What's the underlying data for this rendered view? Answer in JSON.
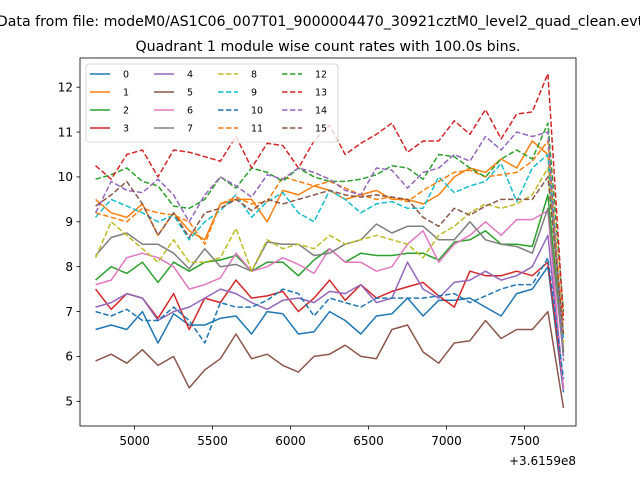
{
  "chart_data": {
    "type": "line",
    "suptitle": "Data from file: modeM0/AS1C06_007T01_9000004470_30921cztM0_level2_quad_clean.evt",
    "title": "Quadrant 1 module wise count rates with 100.0s bins.",
    "xlabel": "",
    "ylabel": "",
    "x_offset_label": "+3.6159e8",
    "x_offset": 361590000,
    "xlim": [
      4650,
      7830
    ],
    "ylim": [
      4.45,
      12.65
    ],
    "xticks": [
      5000,
      5500,
      6000,
      6500,
      7000,
      7500
    ],
    "yticks": [
      5,
      6,
      7,
      8,
      9,
      10,
      11,
      12
    ],
    "x": [
      4750,
      4850,
      4950,
      5050,
      5150,
      5250,
      5350,
      5450,
      5550,
      5650,
      5750,
      5850,
      5950,
      6050,
      6150,
      6250,
      6350,
      6450,
      6550,
      6650,
      6750,
      6850,
      6950,
      7050,
      7150,
      7250,
      7350,
      7450,
      7550,
      7650,
      7750
    ],
    "legend": {
      "location": "upper-left",
      "columns": 4
    },
    "series": [
      {
        "name": "0",
        "color": "#1f77b4",
        "style": "solid",
        "values": [
          6.6,
          6.7,
          6.6,
          7.0,
          6.3,
          6.95,
          6.7,
          6.7,
          6.85,
          6.9,
          6.5,
          7.0,
          6.95,
          6.5,
          6.55,
          7.0,
          6.8,
          6.5,
          6.9,
          6.95,
          7.3,
          6.9,
          7.25,
          7.25,
          7.3,
          7.1,
          6.9,
          7.4,
          7.5,
          8.0,
          5.2
        ]
      },
      {
        "name": "1",
        "color": "#ff7f0e",
        "style": "solid",
        "values": [
          9.5,
          9.2,
          9.1,
          9.4,
          8.7,
          9.2,
          8.8,
          8.6,
          9.4,
          9.5,
          9.5,
          9.0,
          9.7,
          9.6,
          9.8,
          9.7,
          9.5,
          9.6,
          9.7,
          9.5,
          9.5,
          9.4,
          9.6,
          10.0,
          10.2,
          10.1,
          10.4,
          10.2,
          10.8,
          10.5,
          6.1
        ]
      },
      {
        "name": "2",
        "color": "#2ca02c",
        "style": "solid",
        "values": [
          7.7,
          8.0,
          7.85,
          8.1,
          7.65,
          8.1,
          7.9,
          8.1,
          8.15,
          8.25,
          7.9,
          8.1,
          8.1,
          7.8,
          8.15,
          8.4,
          8.1,
          8.3,
          8.25,
          8.25,
          8.3,
          8.3,
          8.15,
          8.55,
          8.6,
          8.8,
          8.5,
          8.5,
          8.45,
          9.6,
          6.1
        ]
      },
      {
        "name": "3",
        "color": "#d62728",
        "style": "solid",
        "values": [
          7.5,
          7.05,
          7.4,
          7.3,
          6.85,
          7.4,
          6.6,
          7.3,
          7.2,
          7.7,
          7.3,
          7.35,
          7.45,
          7.0,
          7.3,
          7.7,
          7.25,
          7.6,
          7.3,
          7.45,
          7.55,
          7.65,
          7.35,
          7.1,
          7.9,
          7.8,
          7.8,
          7.9,
          7.8,
          8.1,
          5.3
        ]
      },
      {
        "name": "4",
        "color": "#9467bd",
        "style": "solid",
        "values": [
          7.1,
          7.2,
          7.4,
          7.3,
          6.8,
          7.0,
          7.1,
          7.3,
          7.5,
          7.4,
          7.2,
          7.05,
          7.25,
          7.3,
          7.2,
          7.45,
          7.4,
          7.6,
          7.2,
          7.3,
          8.1,
          7.5,
          7.3,
          7.65,
          7.7,
          7.9,
          7.7,
          7.8,
          8.0,
          8.7,
          5.3
        ]
      },
      {
        "name": "5",
        "color": "#8c564b",
        "style": "solid",
        "values": [
          5.9,
          6.05,
          5.85,
          6.15,
          5.8,
          6.0,
          5.3,
          5.7,
          5.95,
          6.5,
          5.95,
          6.05,
          5.8,
          5.65,
          6.0,
          6.05,
          6.25,
          6.0,
          5.95,
          6.6,
          6.7,
          6.1,
          5.85,
          6.3,
          6.35,
          6.8,
          6.4,
          6.6,
          6.6,
          7.0,
          4.85
        ]
      },
      {
        "name": "6",
        "color": "#e377c2",
        "style": "solid",
        "values": [
          7.6,
          7.7,
          8.2,
          8.3,
          8.2,
          8.0,
          7.5,
          7.6,
          7.75,
          8.3,
          7.9,
          8.0,
          8.2,
          8.05,
          7.85,
          8.4,
          8.1,
          8.1,
          7.9,
          8.0,
          8.5,
          8.8,
          8.1,
          8.5,
          8.7,
          9.0,
          8.7,
          9.05,
          9.05,
          9.25,
          5.25
        ]
      },
      {
        "name": "7",
        "color": "#7f7f7f",
        "style": "solid",
        "values": [
          8.25,
          8.65,
          8.75,
          8.5,
          8.5,
          8.3,
          7.95,
          8.4,
          8.0,
          8.05,
          7.9,
          8.55,
          8.5,
          8.5,
          8.25,
          8.3,
          8.5,
          8.6,
          8.95,
          8.75,
          8.9,
          8.9,
          8.6,
          8.6,
          9.0,
          8.6,
          8.5,
          8.45,
          8.3,
          9.3,
          6.0
        ]
      },
      {
        "name": "8",
        "color": "#bcbd22",
        "style": "dashed",
        "values": [
          8.2,
          9.0,
          8.7,
          8.4,
          8.1,
          8.6,
          8.1,
          8.1,
          8.2,
          8.85,
          7.9,
          8.6,
          8.4,
          8.5,
          8.4,
          8.7,
          8.5,
          8.6,
          8.7,
          8.6,
          8.5,
          8.2,
          8.7,
          8.9,
          9.2,
          9.4,
          9.3,
          9.4,
          9.6,
          10.2,
          6.3
        ]
      },
      {
        "name": "9",
        "color": "#17becf",
        "style": "dashed",
        "values": [
          9.1,
          9.5,
          9.35,
          9.2,
          9.0,
          9.15,
          8.6,
          9.0,
          9.25,
          9.6,
          9.1,
          9.45,
          9.65,
          9.2,
          9.0,
          9.7,
          9.5,
          9.2,
          9.4,
          9.45,
          9.3,
          9.3,
          10.0,
          9.65,
          9.8,
          9.9,
          10.3,
          9.45,
          10.2,
          10.5,
          6.4
        ]
      },
      {
        "name": "10",
        "color": "#1f77b4",
        "style": "dashed",
        "values": [
          7.0,
          6.9,
          7.05,
          6.8,
          6.8,
          7.1,
          6.8,
          6.3,
          7.2,
          7.1,
          7.1,
          7.25,
          7.5,
          7.4,
          6.9,
          7.3,
          7.2,
          7.1,
          7.3,
          7.3,
          7.3,
          7.3,
          7.35,
          7.4,
          7.2,
          7.35,
          7.5,
          7.6,
          7.6,
          8.2,
          5.5
        ]
      },
      {
        "name": "11",
        "color": "#ff7f0e",
        "style": "dashed",
        "values": [
          9.2,
          9.1,
          9.0,
          9.3,
          9.2,
          9.15,
          9.0,
          8.5,
          9.4,
          9.55,
          9.4,
          9.45,
          10.0,
          9.9,
          9.8,
          9.9,
          9.75,
          9.6,
          9.5,
          9.55,
          9.45,
          9.7,
          9.9,
          10.1,
          10.15,
          10.0,
          10.05,
          10.1,
          10.35,
          10.8,
          6.5
        ]
      },
      {
        "name": "12",
        "color": "#2ca02c",
        "style": "dashed",
        "values": [
          9.95,
          10.05,
          10.2,
          9.9,
          9.8,
          9.35,
          9.3,
          9.5,
          10.0,
          9.75,
          10.2,
          10.1,
          9.9,
          10.2,
          10.0,
          9.9,
          9.9,
          9.95,
          10.05,
          10.25,
          10.2,
          9.95,
          10.5,
          10.45,
          10.2,
          10.0,
          10.4,
          10.6,
          10.4,
          11.2,
          7.0
        ]
      },
      {
        "name": "13",
        "color": "#d62728",
        "style": "dashed",
        "values": [
          10.25,
          9.95,
          10.5,
          10.6,
          10.0,
          10.6,
          10.55,
          10.45,
          10.35,
          10.9,
          10.2,
          10.75,
          10.7,
          10.2,
          10.8,
          11.15,
          10.5,
          10.75,
          10.95,
          11.2,
          10.55,
          10.8,
          10.8,
          11.25,
          10.95,
          11.5,
          10.85,
          11.4,
          11.45,
          12.3,
          6.8
        ]
      },
      {
        "name": "14",
        "color": "#9467bd",
        "style": "dashed",
        "values": [
          9.2,
          9.9,
          9.7,
          9.65,
          9.95,
          9.6,
          9.0,
          9.6,
          10.0,
          9.8,
          9.55,
          10.05,
          9.95,
          10.2,
          10.1,
          9.95,
          9.7,
          9.6,
          10.2,
          10.15,
          9.75,
          10.1,
          10.2,
          10.5,
          10.35,
          10.9,
          10.6,
          11.0,
          10.9,
          11.0,
          5.9
        ]
      },
      {
        "name": "15",
        "color": "#8c564b",
        "style": "dashed",
        "values": [
          9.35,
          9.6,
          9.9,
          9.4,
          8.7,
          9.2,
          8.65,
          9.2,
          9.3,
          9.5,
          9.25,
          9.5,
          9.4,
          9.5,
          9.6,
          9.7,
          9.6,
          9.55,
          9.6,
          9.55,
          9.5,
          9.1,
          8.9,
          9.3,
          9.15,
          9.35,
          9.5,
          9.5,
          9.5,
          10.0,
          6.5
        ]
      }
    ]
  }
}
